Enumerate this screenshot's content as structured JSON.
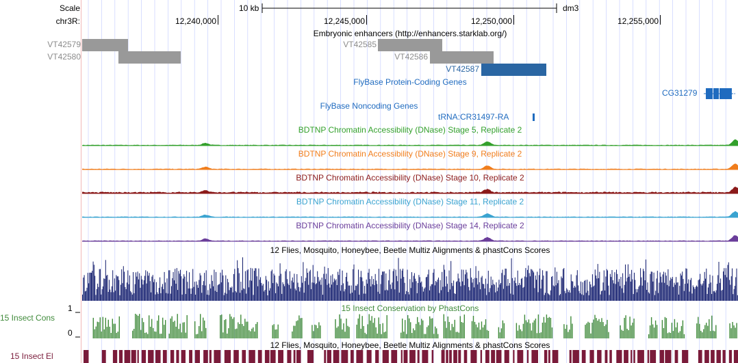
{
  "browser": {
    "scale_label": "Scale",
    "scale_value": "10 kb",
    "assembly": "dm3",
    "chrom_label": "chr3R:",
    "positions": [
      "12,240,000",
      "12,245,000",
      "12,250,000",
      "12,255,000"
    ]
  },
  "enhancers": {
    "title": "Embryonic enhancers (http://enhancers.starklab.org/)",
    "features": [
      "VT42579",
      "VT42580",
      "VT42585",
      "VT42586",
      "VT42587"
    ]
  },
  "coding_genes": {
    "title": "FlyBase Protein-Coding Genes",
    "gene": "CG31279"
  },
  "noncoding_genes": {
    "title": "FlyBase Noncoding Genes",
    "gene": "tRNA:CR31497-RA"
  },
  "dnase": [
    {
      "title": "BDTNP Chromatin Accessibility (DNase) Stage 5, Replicate 2",
      "color": "#33a02c"
    },
    {
      "title": "BDTNP Chromatin Accessibility (DNase) Stage 9, Replicate 2",
      "color": "#f07d1c"
    },
    {
      "title": "BDTNP Chromatin Accessibility (DNase) Stage 10, Replicate 2",
      "color": "#8b1a1a"
    },
    {
      "title": "BDTNP Chromatin Accessibility (DNase) Stage 11, Replicate 2",
      "color": "#3aa3d0"
    },
    {
      "title": "BDTNP Chromatin Accessibility (DNase) Stage 14, Replicate 2",
      "color": "#6a3d9a"
    }
  ],
  "multiz": {
    "title": "12 Flies, Mosquito, Honeybee, Beetle Multiz Alignments & phastCons Scores",
    "color": "#0f1a6b"
  },
  "phastcons": {
    "title": "15 Insect Conservation by PhastCons",
    "side_label": "15 Insect Cons",
    "axis_max": "1",
    "axis_min": "0",
    "color": "#3f8a3a"
  },
  "elements": {
    "title": "12 Flies, Mosquito, Honeybee, Beetle Multiz Alignments & phastCons Scores",
    "side_label": "15 Insect El",
    "color": "#7a1b3a"
  },
  "colors": {
    "enhancer_gray": "#999999",
    "enhancer_label_gray": "#8c8c8c",
    "selected_blue": "#2a66a3",
    "gene_blue": "#1f6bbf",
    "grid_blue": "#c8d0ff",
    "left_border_pink": "#f2b8b8"
  }
}
